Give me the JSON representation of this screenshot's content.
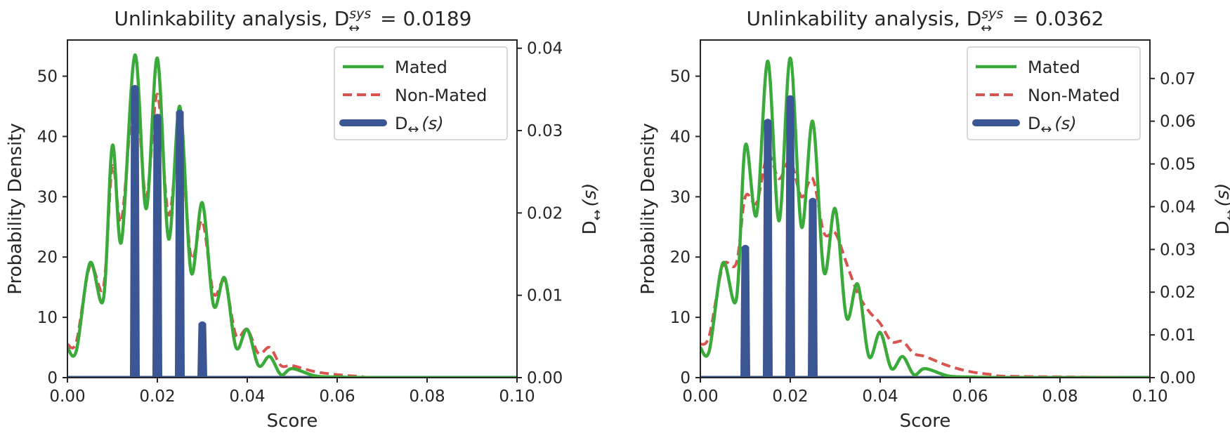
{
  "figure": {
    "colors": {
      "mated": "#3aaa3a",
      "non_mated": "#d9534f",
      "d_local": "#3a5694",
      "axes": "#262626",
      "legend_border": "#cccccc"
    },
    "symbols": {
      "d_main": "D",
      "arrow": "↔",
      "sys": "sys",
      "s_paren": "(s)"
    }
  },
  "chart_data": [
    {
      "type": "line",
      "title": "Unlinkability analysis, D↔sys = 0.0189",
      "title_prefix": "Unlinkability analysis, ",
      "title_value": " = 0.0189",
      "xlabel": "Score",
      "ylabel": "Probability Density",
      "y2label": "D↔(s)",
      "xlim": [
        0.0,
        0.1
      ],
      "ylim": [
        0,
        56
      ],
      "y2lim": [
        0,
        0.041
      ],
      "xticks": [
        "0.00",
        "0.02",
        "0.04",
        "0.06",
        "0.08",
        "0.10"
      ],
      "yticks": [
        "0",
        "10",
        "20",
        "30",
        "40",
        "50"
      ],
      "y2ticks": [
        "0.00",
        "0.01",
        "0.02",
        "0.03",
        "0.04"
      ],
      "legend": {
        "position": "upper right",
        "entries": [
          "Mated",
          "Non-Mated",
          "D↔(s)"
        ]
      },
      "grid": false,
      "series": [
        {
          "name": "Mated",
          "style": "solid",
          "axis": "left",
          "x": [
            0.0,
            0.002,
            0.005,
            0.008,
            0.01,
            0.012,
            0.015,
            0.0175,
            0.02,
            0.0225,
            0.025,
            0.0275,
            0.03,
            0.0325,
            0.035,
            0.0375,
            0.04,
            0.0425,
            0.045,
            0.0475,
            0.05,
            0.055,
            0.06,
            0.07,
            0.08,
            0.1
          ],
          "y": [
            5,
            4.5,
            19,
            13,
            38.5,
            22.5,
            53.5,
            28,
            53,
            23,
            45,
            17.5,
            29,
            12,
            16.5,
            5,
            8,
            2,
            3.5,
            0.5,
            1.5,
            0.3,
            0.1,
            0,
            0,
            0
          ]
        },
        {
          "name": "Non-Mated",
          "style": "dashed",
          "axis": "left",
          "x": [
            0.0,
            0.002,
            0.005,
            0.008,
            0.01,
            0.012,
            0.015,
            0.0175,
            0.02,
            0.0225,
            0.025,
            0.0275,
            0.03,
            0.0325,
            0.035,
            0.0375,
            0.04,
            0.0425,
            0.045,
            0.0475,
            0.05,
            0.055,
            0.06,
            0.065,
            0.07,
            0.1
          ],
          "y": [
            5.5,
            6,
            18.5,
            15,
            35,
            26,
            48,
            30,
            47,
            27,
            40,
            20,
            26,
            14,
            16,
            7,
            8,
            4,
            5,
            2,
            2,
            1,
            0.5,
            0.2,
            0,
            0
          ]
        },
        {
          "name": "D↔(s)",
          "style": "solid",
          "axis": "right",
          "x": [
            0.015,
            0.02,
            0.025,
            0.03
          ],
          "y": [
            0.0355,
            0.032,
            0.0325,
            0.0068
          ]
        }
      ]
    },
    {
      "type": "line",
      "title": "Unlinkability analysis, D↔sys = 0.0362",
      "title_prefix": "Unlinkability analysis, ",
      "title_value": " = 0.0362",
      "xlabel": "Score",
      "ylabel": "Probability Density",
      "y2label": "D↔(s)",
      "xlim": [
        0.0,
        0.1
      ],
      "ylim": [
        0,
        56
      ],
      "y2lim": [
        0,
        0.079
      ],
      "xticks": [
        "0.00",
        "0.02",
        "0.04",
        "0.06",
        "0.08",
        "0.10"
      ],
      "yticks": [
        "0",
        "10",
        "20",
        "30",
        "40",
        "50"
      ],
      "y2ticks": [
        "0.00",
        "0.01",
        "0.02",
        "0.03",
        "0.04",
        "0.05",
        "0.06",
        "0.07"
      ],
      "legend": {
        "position": "upper right",
        "entries": [
          "Mated",
          "Non-Mated",
          "D↔(s)"
        ]
      },
      "grid": false,
      "series": [
        {
          "name": "Mated",
          "style": "solid",
          "axis": "left",
          "x": [
            0.0,
            0.002,
            0.005,
            0.008,
            0.01,
            0.0125,
            0.015,
            0.0175,
            0.02,
            0.0225,
            0.025,
            0.0275,
            0.03,
            0.0325,
            0.035,
            0.0375,
            0.04,
            0.0425,
            0.045,
            0.0475,
            0.05,
            0.055,
            0.06,
            0.07,
            0.08,
            0.1
          ],
          "y": [
            5,
            4.5,
            19,
            13,
            38.5,
            27,
            52.5,
            26,
            53,
            25,
            42.5,
            17.5,
            28,
            10,
            15.5,
            3.5,
            7.5,
            1.5,
            3.5,
            0.5,
            1.5,
            0.3,
            0.1,
            0,
            0,
            0
          ]
        },
        {
          "name": "Non-Mated",
          "style": "dashed",
          "axis": "left",
          "x": [
            0.0,
            0.002,
            0.005,
            0.008,
            0.01,
            0.0125,
            0.015,
            0.0175,
            0.02,
            0.0225,
            0.025,
            0.0275,
            0.03,
            0.0325,
            0.035,
            0.0375,
            0.04,
            0.0425,
            0.045,
            0.0475,
            0.05,
            0.055,
            0.06,
            0.065,
            0.07,
            0.1
          ],
          "y": [
            5.5,
            7,
            18.5,
            19,
            30,
            29,
            37,
            33,
            36,
            30,
            33,
            24,
            24,
            19,
            14,
            11,
            9,
            6,
            6,
            4,
            3.5,
            2,
            1,
            0.5,
            0.2,
            0
          ]
        },
        {
          "name": "D↔(s)",
          "style": "solid",
          "axis": "right",
          "x": [
            0.01,
            0.015,
            0.02,
            0.025
          ],
          "y": [
            0.031,
            0.0605,
            0.066,
            0.042
          ]
        }
      ]
    }
  ]
}
